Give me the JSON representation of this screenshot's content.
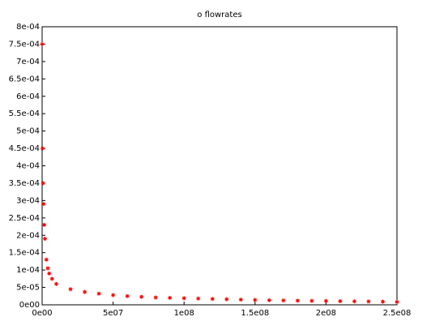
{
  "chart_data": {
    "type": "scatter",
    "title": "o flowrates",
    "series": [
      {
        "color": "#ff0000",
        "marker": "star",
        "x": [
          0,
          300000,
          600000,
          1000000,
          1500000,
          2000000,
          3000000,
          4000000,
          5000000,
          7000000,
          10000000,
          20000000,
          30000000,
          40000000,
          50000000,
          60000000,
          70000000,
          80000000,
          90000000,
          100000000,
          110000000,
          120000000,
          130000000,
          140000000,
          150000000,
          160000000,
          170000000,
          180000000,
          190000000,
          200000000,
          210000000,
          220000000,
          230000000,
          240000000,
          250000000
        ],
        "values": [
          0.00075,
          0.00045,
          0.00035,
          0.00029,
          0.00023,
          0.00019,
          0.00013,
          0.000105,
          9e-05,
          7.5e-05,
          6e-05,
          4.5e-05,
          3.7e-05,
          3.2e-05,
          2.8e-05,
          2.5e-05,
          2.3e-05,
          2.1e-05,
          2e-05,
          1.9e-05,
          1.8e-05,
          1.7e-05,
          1.6e-05,
          1.5e-05,
          1.4e-05,
          1.3e-05,
          1.25e-05,
          1.2e-05,
          1.15e-05,
          1.1e-05,
          1.05e-05,
          1e-05,
          9.5e-06,
          9e-06,
          8.5e-06
        ]
      }
    ],
    "xlim": [
      0,
      250000000
    ],
    "ylim": [
      0,
      0.0008
    ],
    "xticks": [
      {
        "value": 0,
        "label": "0e00"
      },
      {
        "value": 50000000,
        "label": "5e07"
      },
      {
        "value": 100000000,
        "label": "1e08"
      },
      {
        "value": 150000000,
        "label": "1.5e08"
      },
      {
        "value": 200000000,
        "label": "2e08"
      },
      {
        "value": 250000000,
        "label": "2.5e08"
      }
    ],
    "yticks": [
      {
        "value": 0,
        "label": "0e00"
      },
      {
        "value": 5e-05,
        "label": "5e-05"
      },
      {
        "value": 0.0001,
        "label": "1e-04"
      },
      {
        "value": 0.00015,
        "label": "1.5e-04"
      },
      {
        "value": 0.0002,
        "label": "2e-04"
      },
      {
        "value": 0.00025,
        "label": "2.5e-04"
      },
      {
        "value": 0.0003,
        "label": "3e-04"
      },
      {
        "value": 0.00035,
        "label": "3.5e-04"
      },
      {
        "value": 0.0004,
        "label": "4e-04"
      },
      {
        "value": 0.00045,
        "label": "4.5e-04"
      },
      {
        "value": 0.0005,
        "label": "5e-04"
      },
      {
        "value": 0.00055,
        "label": "5.5e-04"
      },
      {
        "value": 0.0006,
        "label": "6e-04"
      },
      {
        "value": 0.00065,
        "label": "6.5e-04"
      },
      {
        "value": 0.0007,
        "label": "7e-04"
      },
      {
        "value": 0.00075,
        "label": "7.5e-04"
      },
      {
        "value": 0.0008,
        "label": "8e-04"
      }
    ]
  }
}
